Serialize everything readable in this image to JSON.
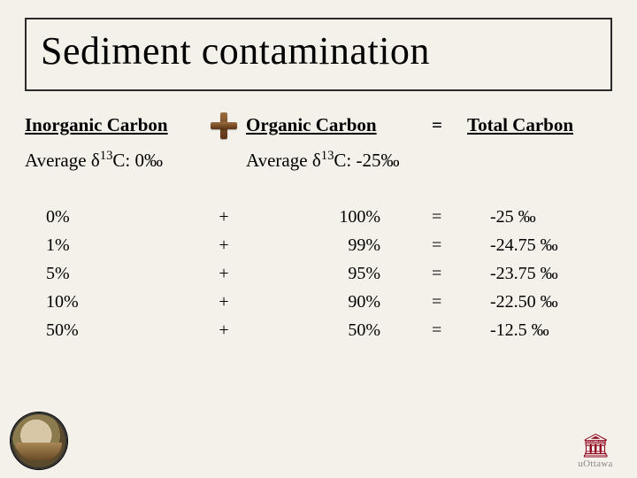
{
  "background_color": "#f4f1ea",
  "title": "Sediment contamination",
  "headers": {
    "inorganic": "Inorganic Carbon",
    "organic": "Organic Carbon",
    "total": "Total Carbon",
    "eq_prefix": "="
  },
  "subheaders": {
    "inorganic_html": "Average δ<span class='sup'>13</span>C: 0‰",
    "organic_html": "Average δ<span class='sup'>13</span>C: -25‰"
  },
  "rows": [
    {
      "inorg": "0%",
      "plus": "+",
      "org": "100%",
      "eq": "=",
      "total": "-25 ‰"
    },
    {
      "inorg": "1%",
      "plus": "+",
      "org": "99%",
      "eq": "=",
      "total": "-24.75 ‰"
    },
    {
      "inorg": "5%",
      "plus": "+",
      "org": "95%",
      "eq": "=",
      "total": "-23.75 ‰"
    },
    {
      "inorg": "10%",
      "plus": "+",
      "org": "90%",
      "eq": "=",
      "total": "-22.50 ‰"
    },
    {
      "inorg": "50%",
      "plus": "+",
      "org": "50%",
      "eq": "=",
      "total": "-12.5 ‰"
    }
  ],
  "logo_right_text": "uOttawa"
}
